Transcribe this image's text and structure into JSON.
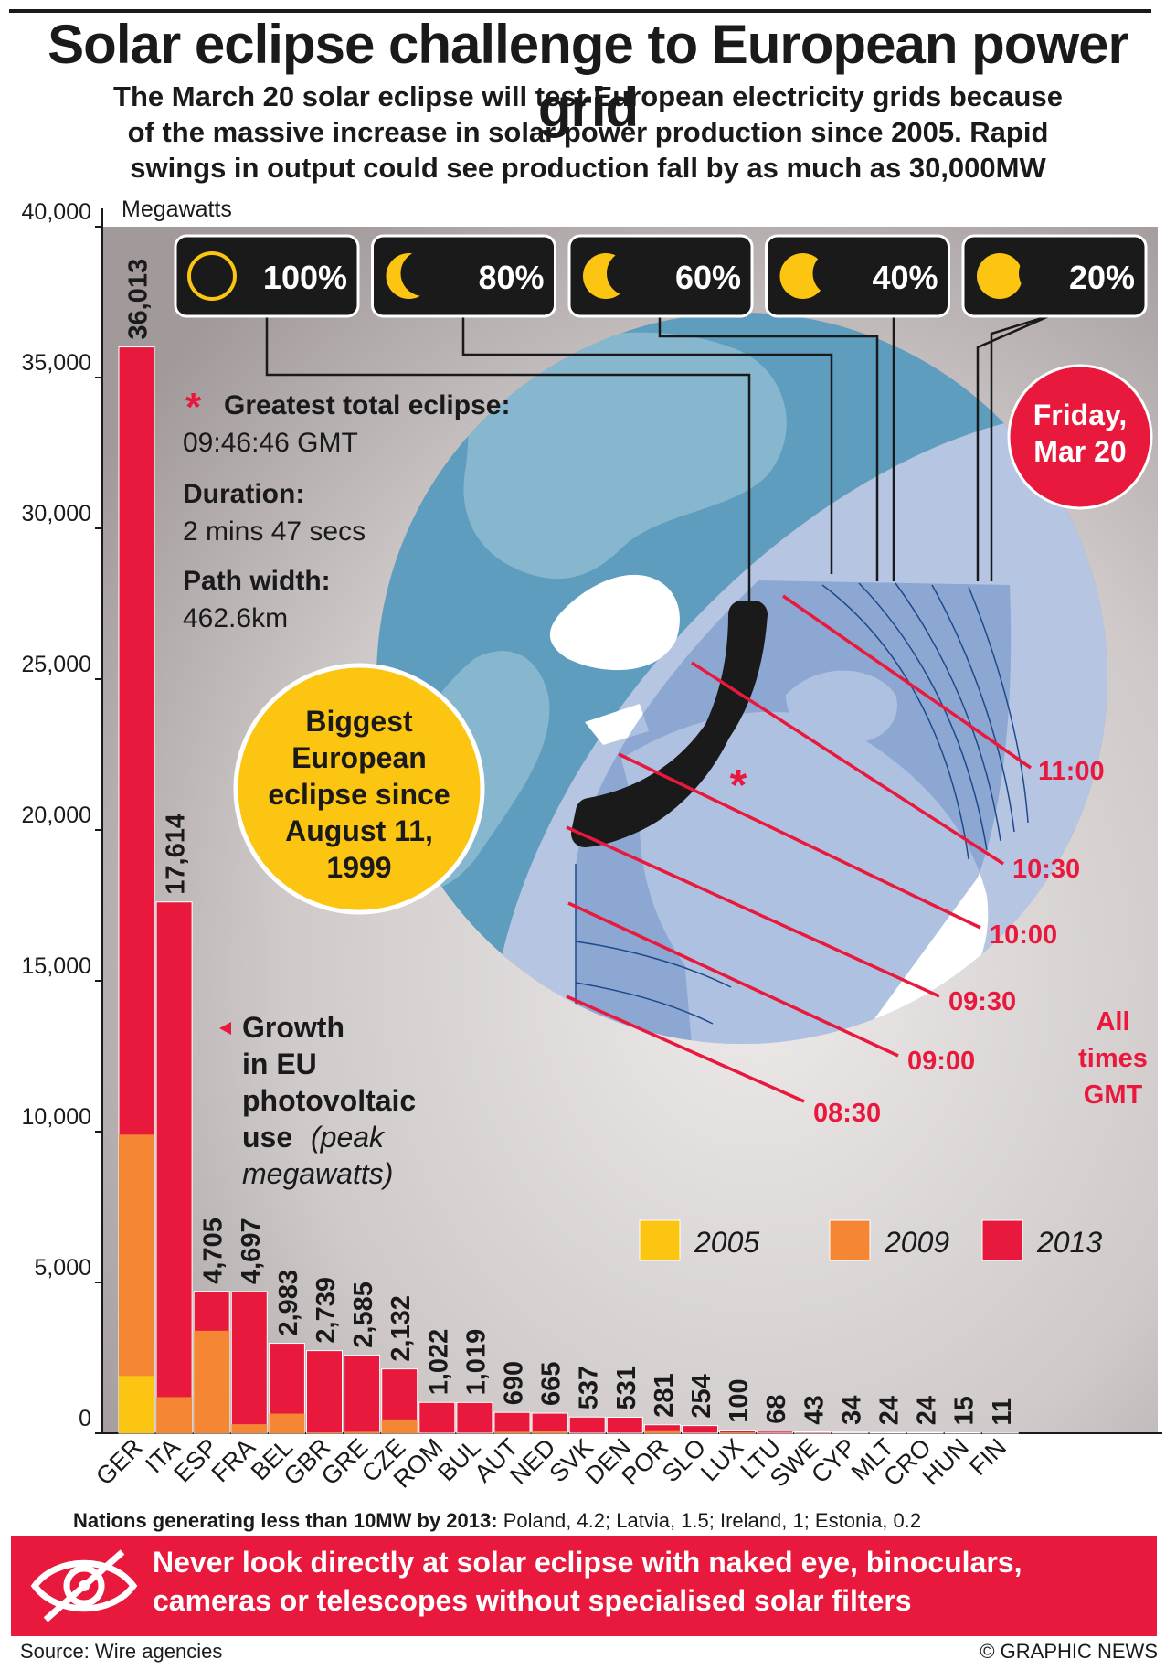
{
  "header": {
    "title": "Solar eclipse challenge to European power grid",
    "subtitle_lines": [
      "The March 20 solar eclipse will test European electricity grids because",
      "of the massive increase in solar power production since 2005. Rapid",
      "swings in output could see production fall by as much as 30,000MW"
    ]
  },
  "chart_data": {
    "type": "bar",
    "ylabel": "Megawatts",
    "ylim": [
      0,
      40000
    ],
    "yticks": [
      "40,000",
      "35,000",
      "30,000",
      "25,000",
      "20,000",
      "15,000",
      "10,000",
      "5,000",
      "0"
    ],
    "ytick_values": [
      40000,
      35000,
      30000,
      25000,
      20000,
      15000,
      10000,
      5000,
      0
    ],
    "categories": [
      "GER",
      "ITA",
      "ESP",
      "FRA",
      "BEL",
      "GBR",
      "GRE",
      "CZE",
      "ROM",
      "BUL",
      "AUT",
      "NED",
      "SVK",
      "DEN",
      "POR",
      "SLO",
      "LUX",
      "LTU",
      "SWE",
      "CYP",
      "MLT",
      "CRO",
      "HUN",
      "FIN"
    ],
    "series": [
      {
        "name": "2005",
        "color": "#fcc512",
        "values": [
          1900,
          0,
          0,
          0,
          0,
          0,
          0,
          0,
          0,
          0,
          0,
          0,
          0,
          0,
          0,
          0,
          0,
          0,
          0,
          0,
          0,
          0,
          0,
          0
        ]
      },
      {
        "name": "2009",
        "color": "#f58634",
        "values": [
          9900,
          1200,
          3400,
          300,
          650,
          30,
          50,
          460,
          0,
          0,
          50,
          70,
          0,
          0,
          100,
          0,
          30,
          0,
          0,
          0,
          0,
          0,
          0,
          0
        ]
      },
      {
        "name": "2013",
        "color": "#e8193c",
        "values": [
          36013,
          17614,
          4705,
          4697,
          2983,
          2739,
          2585,
          2132,
          1022,
          1019,
          690,
          665,
          537,
          531,
          281,
          254,
          100,
          68,
          43,
          34,
          24,
          24,
          15,
          11
        ]
      }
    ],
    "value_labels": [
      "36,013",
      "17,614",
      "4,705",
      "4,697",
      "2,983",
      "2,739",
      "2,585",
      "2,132",
      "1,022",
      "1,019",
      "690",
      "665",
      "537",
      "531",
      "281",
      "254",
      "100",
      "68",
      "43",
      "34",
      "24",
      "24",
      "15",
      "11"
    ],
    "legend": {
      "placement": "bottom-right",
      "entries": [
        "2005",
        "2009",
        "2013"
      ]
    },
    "legend_caption": {
      "main": "Growth in EU photovoltaic use",
      "lines": [
        "Growth",
        "in EU",
        "photovoltaic",
        "use"
      ],
      "italic_suffix": "(peak",
      "italic_line": "megawatts)"
    }
  },
  "eclipse": {
    "coverage_labels": [
      "100%",
      "80%",
      "60%",
      "40%",
      "20%"
    ],
    "greatest_label": "Greatest total eclipse:",
    "greatest_value": "09:46:46 GMT",
    "duration_label": "Duration:",
    "duration_value": "2 mins 47 secs",
    "path_label": "Path width:",
    "path_value": "462.6km",
    "date_badge": [
      "Friday,",
      "Mar 20"
    ],
    "biggest_badge": [
      "Biggest",
      "European",
      "eclipse since",
      "August 11,",
      "1999"
    ],
    "times": [
      "11:00",
      "10:30",
      "10:00",
      "09:30",
      "09:00",
      "08:30"
    ],
    "times_note": [
      "All",
      "times",
      "GMT"
    ]
  },
  "footnote": {
    "label": "Nations generating less than 10MW by 2013:",
    "value": "Poland, 4.2; Latvia, 1.5; Ireland, 1; Estonia, 0.2"
  },
  "warning": {
    "lines": [
      "Never look directly at solar eclipse with naked eye, binoculars,",
      "cameras or telescopes without specialised solar filters"
    ]
  },
  "footer": {
    "source": "Source: Wire agencies",
    "credit": "© GRAPHIC NEWS"
  },
  "colors": {
    "red": "#e8193c",
    "yellow": "#fcc512",
    "orange": "#f58634",
    "dark": "#1a1a1a",
    "panel": "#c8c2c2"
  }
}
